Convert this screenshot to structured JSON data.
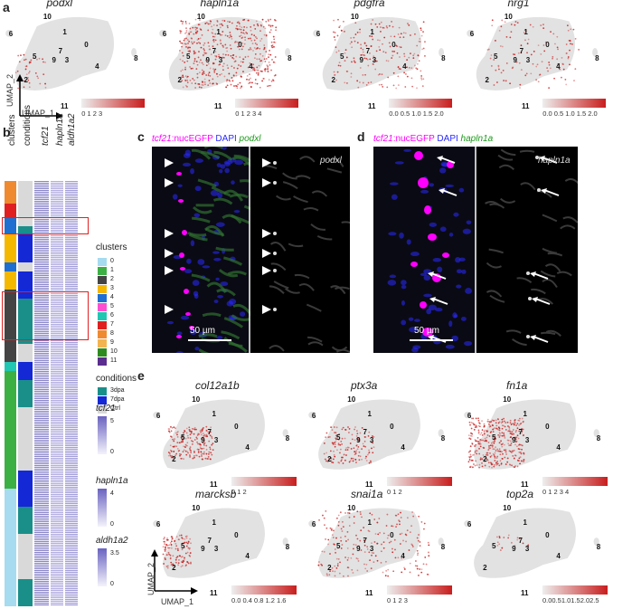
{
  "panels": {
    "a": "a",
    "b": "b",
    "c": "c",
    "d": "d",
    "e": "e"
  },
  "umap_axes": {
    "x": "UMAP_1",
    "y": "UMAP_2"
  },
  "cluster_labels": [
    "0",
    "1",
    "2",
    "3",
    "4",
    "5",
    "6",
    "7",
    "8",
    "9",
    "10",
    "11"
  ],
  "row_a": [
    {
      "gene": "podxl",
      "ticks": "0   1   2   3"
    },
    {
      "gene": "hapln1a",
      "ticks": "0   1   2   3   4"
    },
    {
      "gene": "pdgfra",
      "ticks": "0.0 0.5 1.0 1.5 2.0"
    },
    {
      "gene": "nrg1",
      "ticks": "0.0 0.5 1.0 1.5 2.0"
    }
  ],
  "row_e1": [
    {
      "gene": "col12a1b",
      "ticks": "0    1    2"
    },
    {
      "gene": "ptx3a",
      "ticks": "0    1    2"
    },
    {
      "gene": "fn1a",
      "ticks": "0  1  2  3  4"
    }
  ],
  "row_e2": [
    {
      "gene": "marcksb",
      "ticks": "0.0 0.4 0.8 1.2 1.6"
    },
    {
      "gene": "snai1a",
      "ticks": "0    1    2    3"
    },
    {
      "gene": "top2a",
      "ticks": "0.00.51.01.52.02.5"
    }
  ],
  "heatmap": {
    "columns": [
      "clusters",
      "conditions",
      "tcf21",
      "hapln1a",
      "aldh1a2"
    ],
    "clusters_title": "clusters",
    "clusters": [
      {
        "label": "0",
        "color": "#a6dbf0"
      },
      {
        "label": "1",
        "color": "#3cb043"
      },
      {
        "label": "2",
        "color": "#444444"
      },
      {
        "label": "3",
        "color": "#f5b800"
      },
      {
        "label": "4",
        "color": "#1f6fd1"
      },
      {
        "label": "5",
        "color": "#ff4fd1"
      },
      {
        "label": "6",
        "color": "#22c7b3"
      },
      {
        "label": "7",
        "color": "#e02020"
      },
      {
        "label": "8",
        "color": "#f08a30"
      },
      {
        "label": "9",
        "color": "#f2b450"
      },
      {
        "label": "10",
        "color": "#2e8b1f"
      },
      {
        "label": "11",
        "color": "#5b2d8e"
      }
    ],
    "conditions_title": "conditions",
    "conditions": [
      {
        "label": "3dpa",
        "color": "#1a8f8a"
      },
      {
        "label": "7dpa",
        "color": "#1428d6"
      },
      {
        "label": "Ctrl",
        "color": "#d9d9d9"
      }
    ],
    "scales": [
      {
        "title": "tcf21",
        "max": "5",
        "min": "0"
      },
      {
        "title": "hapln1a",
        "max": "4",
        "min": "0"
      },
      {
        "title": "aldh1a2",
        "max": "3.5",
        "min": "0"
      }
    ]
  },
  "panel_c": {
    "caption_1": "tcf21",
    "caption_2": ":nucEGFP ",
    "caption_3": "DAPI ",
    "caption_4": "podxl",
    "right_label": "podxl",
    "scalebar": "50 µm"
  },
  "panel_d": {
    "caption_1": "tcf21",
    "caption_2": ":nucEGFP ",
    "caption_3": "DAPI ",
    "caption_4": "hapln1a",
    "right_label": "hapln1a",
    "scalebar": "50 µm"
  },
  "colors": {
    "expr_high": "#c81e1e",
    "expr_low": "#f2e4e4",
    "highlight_box": "#e02020",
    "magenta": "#ff00ff",
    "dapi": "#2a2aff",
    "green": "#1a9a1a"
  }
}
